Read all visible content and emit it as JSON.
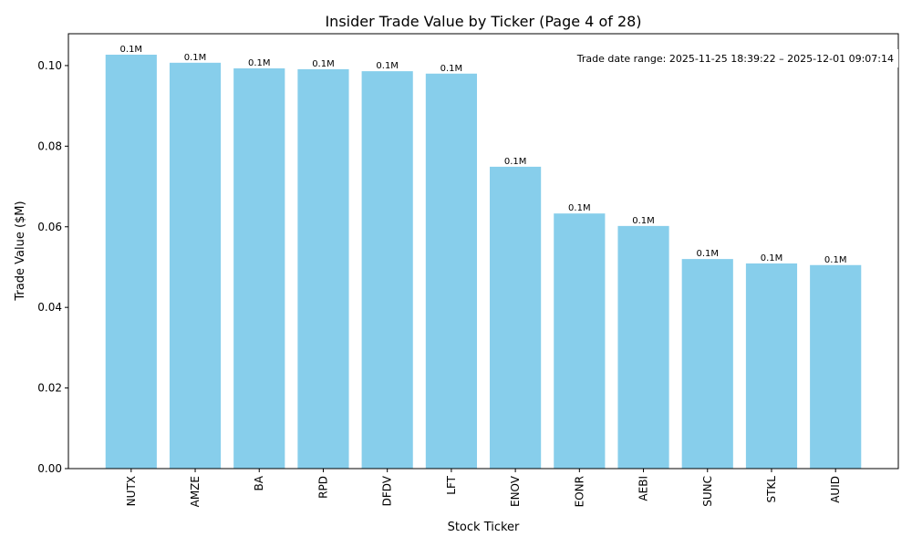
{
  "chart_data": {
    "type": "bar",
    "title": "Insider Trade Value by Ticker (Page 4 of 28)",
    "xlabel": "Stock Ticker",
    "ylabel": "Trade Value ($M)",
    "categories": [
      "NUTX",
      "AMZE",
      "BA",
      "RPD",
      "DFDV",
      "LFT",
      "ENOV",
      "EONR",
      "AEBI",
      "SUNC",
      "STKL",
      "AUID"
    ],
    "values": [
      0.1027,
      0.1007,
      0.0993,
      0.0991,
      0.0986,
      0.098,
      0.0749,
      0.0633,
      0.0602,
      0.052,
      0.0509,
      0.0505
    ],
    "data_labels": [
      "0.1M",
      "0.1M",
      "0.1M",
      "0.1M",
      "0.1M",
      "0.1M",
      "0.1M",
      "0.1M",
      "0.1M",
      "0.1M",
      "0.1M",
      "0.1M"
    ],
    "yticks": [
      "0.00",
      "0.02",
      "0.04",
      "0.06",
      "0.08",
      "0.10"
    ],
    "ylim": [
      0,
      0.1079
    ],
    "annotation": "Trade date range: 2025-11-25 18:39:22 – 2025-12-01 09:07:14",
    "bar_color": "#87ceeb",
    "grid": false
  }
}
